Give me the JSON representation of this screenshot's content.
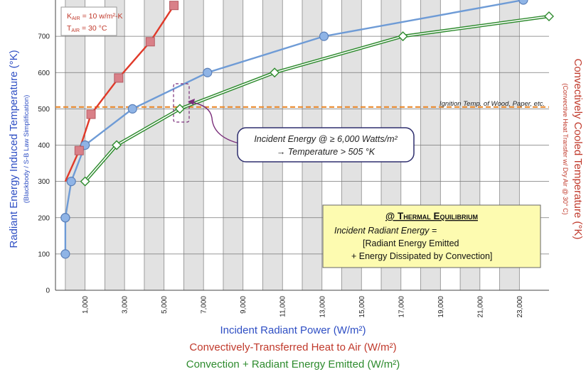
{
  "chart_data": {
    "type": "line",
    "x_range": [
      -500,
      24500
    ],
    "y_range": [
      0,
      800
    ],
    "x_ticks": [
      1000,
      3000,
      5000,
      7000,
      9000,
      11000,
      13000,
      15000,
      17000,
      19000,
      21000,
      23000
    ],
    "x_tick_labels": [
      "1,000",
      "3,000",
      "5,000",
      "7,000",
      "9,000",
      "11,000",
      "13,000",
      "15,000",
      "17,000",
      "19,000",
      "21,000",
      "23,000"
    ],
    "y_ticks": [
      0,
      100,
      200,
      300,
      400,
      500,
      600,
      700
    ],
    "y_tick_labels": [
      "0",
      "100",
      "200",
      "300",
      "400",
      "500",
      "600",
      "700"
    ],
    "grid": "alternating shaded vertical bands with horizontal gridlines",
    "series": [
      {
        "color": "#6e9bd6",
        "marker": "circle",
        "x": [
          0,
          0,
          0,
          300,
          1000,
          3400,
          7200,
          13100,
          23200
        ],
        "y": [
          100,
          200,
          200,
          300,
          400,
          500,
          600,
          700,
          800
        ]
      },
      {
        "color": "#e03a2a",
        "marker": "square",
        "line_from": [
          0,
          300
        ],
        "x": [
          700,
          1300,
          2700,
          4300,
          5500
        ],
        "y": [
          385,
          485,
          585,
          685,
          785
        ]
      },
      {
        "color": "#2e8b2e",
        "marker": "diamond",
        "x": [
          1000,
          2600,
          5800,
          10600,
          17100,
          24500
        ],
        "y": [
          300,
          400,
          500,
          600,
          700,
          755
        ]
      }
    ],
    "reference_line": {
      "y": 505,
      "label": "Ignition Temp. of Wood, Paper, etc.",
      "color": "#e8872a"
    },
    "xlabels": [
      {
        "text": "Incident Radiant Power (W/m²)",
        "color": "#2f4fc4"
      },
      {
        "text": "Convectively-Transferred Heat to Air (W/m²)",
        "color": "#c0392b"
      },
      {
        "text": "Convection + Radiant Energy Emitted (W/m²)",
        "color": "#2e8b2e"
      }
    ],
    "ylabel_left": "Radiant Energy Induced Temperature (°K)",
    "ylabel_left_sub": "(Blackbody / S-B Law Simplification)",
    "ylabel_right": "Convectively Cooled Temperature (°K)",
    "ylabel_right_sub": "(Convective Heat Transfer w/ Dry Air @ 30° C)",
    "params_box": {
      "k_prefix": "K",
      "k_sub": "AIR",
      "k_value": " = 10 w/m²-K",
      "t_prefix": "T",
      "t_sub": "AIR",
      "t_value": " = 30 °C"
    },
    "callout": {
      "line1": "Incident Energy @ ≥ 6,000 Watts/m²",
      "line2": "→ Temperature > 505 °K"
    },
    "equilibrium_box": {
      "title": "@ Thermal Equilibrium",
      "line1": "Incident Radiant Energy =",
      "line2": "[Radiant Energy Emitted",
      "line3": "+ Energy Dissipated by Convection]"
    }
  }
}
